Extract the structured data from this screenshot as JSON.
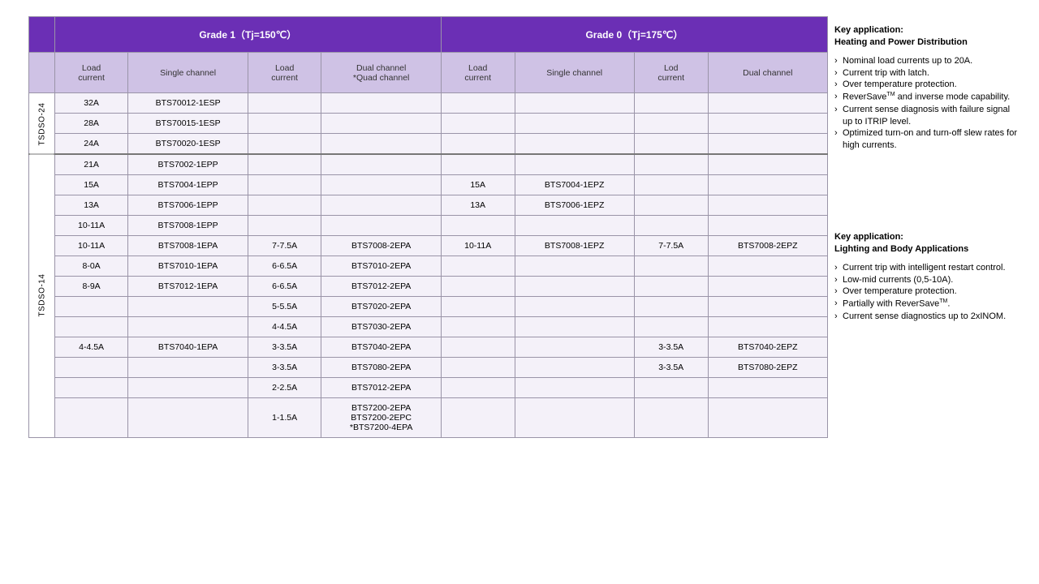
{
  "header": {
    "grade1": "Grade 1（Tj=150℃）",
    "grade0": "Grade 0（Tj=175℃）"
  },
  "sub": {
    "load": "Load\ncurrent",
    "single": "Single channel",
    "dual_quad": "Dual channel\n*Quad channel",
    "lod": "Lod\ncurrent",
    "dual": "Dual channel"
  },
  "pkg24": "TSDSO-24",
  "pkg14": "TSDSO-14",
  "rows24": [
    {
      "g1l": "32A",
      "g1s": "BTS70012-1ESP"
    },
    {
      "g1l": "28A",
      "g1s": "BTS70015-1ESP"
    },
    {
      "g1l": "24A",
      "g1s": "BTS70020-1ESP"
    }
  ],
  "rows14": [
    {
      "g1l": "21A",
      "g1s": "BTS7002-1EPP"
    },
    {
      "g1l": "15A",
      "g1s": "BTS7004-1EPP",
      "g0l": "15A",
      "g0s": "BTS7004-1EPZ"
    },
    {
      "g1l": "13A",
      "g1s": "BTS7006-1EPP",
      "g0l": "13A",
      "g0s": "BTS7006-1EPZ"
    },
    {
      "g1l": "10-11A",
      "g1s": "BTS7008-1EPP"
    },
    {
      "g1l": "10-11A",
      "g1s": "BTS7008-1EPA",
      "g1d_l": "7-7.5A",
      "g1d": "BTS7008-2EPA",
      "g0l": "10-11A",
      "g0s": "BTS7008-1EPZ",
      "g0d_l": "7-7.5A",
      "g0d": "BTS7008-2EPZ"
    },
    {
      "g1l": "8-0A",
      "g1s": "BTS7010-1EPA",
      "g1d_l": "6-6.5A",
      "g1d": "BTS7010-2EPA"
    },
    {
      "g1l": "8-9A",
      "g1s": "BTS7012-1EPA",
      "g1d_l": "6-6.5A",
      "g1d": "BTS7012-2EPA"
    },
    {
      "g1d_l": "5-5.5A",
      "g1d": "BTS7020-2EPA"
    },
    {
      "g1d_l": "4-4.5A",
      "g1d": "BTS7030-2EPA"
    },
    {
      "g1l": "4-4.5A",
      "g1s": "BTS7040-1EPA",
      "g1d_l": "3-3.5A",
      "g1d": "BTS7040-2EPA",
      "g0d_l": "3-3.5A",
      "g0d": "BTS7040-2EPZ"
    },
    {
      "g1d_l": "3-3.5A",
      "g1d": "BTS7080-2EPA",
      "g0d_l": "3-3.5A",
      "g0d": "BTS7080-2EPZ"
    },
    {
      "g1d_l": "2-2.5A",
      "g1d": "BTS7012-2EPA"
    },
    {
      "g1d_l": "1-1.5A",
      "g1d": "BTS7200-2EPA\nBTS7200-2EPC\n*BTS7200-4EPA"
    }
  ],
  "panel1": {
    "title1": "Key application:",
    "title2": "Heating and Power Distribution",
    "items": [
      "Nominal load currents up to 20A.",
      "Current trip with latch.",
      "Over temperature protection.",
      "ReverSave™ and inverse mode capability.",
      "Current sense diagnosis with failure signal up to ITRIP level.",
      "Optimized turn-on and turn-off slew rates for high currents."
    ]
  },
  "panel2": {
    "title1": "Key application:",
    "title2": "Lighting and Body Applications",
    "items": [
      "Current trip with intelligent restart control.",
      "Low-mid currents (0,5-10A).",
      "Over temperature protection.",
      "Partially with ReverSave™.",
      "Current sense diagnostics up to 2xINOM."
    ]
  }
}
